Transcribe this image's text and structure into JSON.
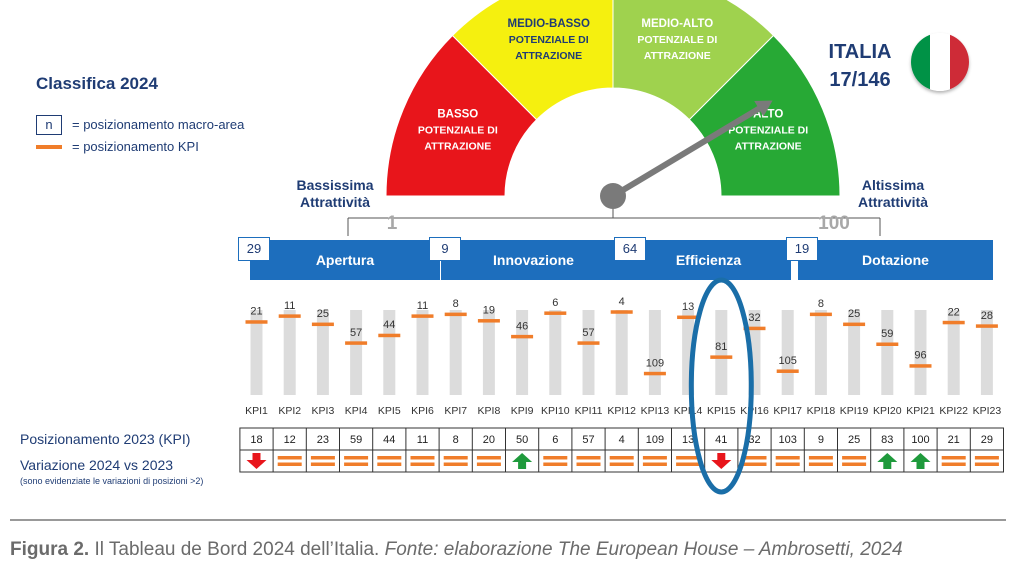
{
  "title": "Classifica 2024",
  "legend": {
    "box_symbol": "n",
    "box_text": "= posizionamento macro-area",
    "line_text": "= posizionamento KPI"
  },
  "country": {
    "name": "ITALIA",
    "rank": "17/146"
  },
  "flag_colors": [
    "#009246",
    "#ffffff",
    "#ce2b37"
  ],
  "gauge": {
    "min_label": "1",
    "max_label": "100",
    "left_label": [
      "Bassissima",
      "Attrattività"
    ],
    "right_label": [
      "Altissima",
      "Attrattività"
    ],
    "needle_value": 83,
    "segments": [
      {
        "lines": [
          "BASSO",
          "POTENZIALE DI",
          "ATTRAZIONE"
        ],
        "color": "#e8151b",
        "text_color": "#ffffff"
      },
      {
        "lines": [
          "MEDIO-BASSO",
          "POTENZIALE DI",
          "ATTRAZIONE"
        ],
        "color": "#f5f00f",
        "text_color": "#1f3c74"
      },
      {
        "lines": [
          "MEDIO-ALTO",
          "POTENZIALE DI",
          "ATTRAZIONE"
        ],
        "color": "#9fd24e",
        "text_color": "#ffffff"
      },
      {
        "lines": [
          "ALTO",
          "POTENZIALE DI",
          "ATTRAZIONE"
        ],
        "color": "#27a935",
        "text_color": "#ffffff"
      }
    ]
  },
  "areas": [
    {
      "name": "Apertura",
      "rank": "29"
    },
    {
      "name": "Innovazione",
      "rank": "9"
    },
    {
      "name": "Efficienza",
      "rank": "64"
    },
    {
      "name": "Dotazione",
      "rank": "19"
    }
  ],
  "chart_data": {
    "type": "bar",
    "ylim": [
      1,
      146
    ],
    "categories": [
      "KPI1",
      "KPI2",
      "KPI3",
      "KPI4",
      "KPI5",
      "KPI6",
      "KPI7",
      "KPI8",
      "KPI9",
      "KPI10",
      "KPI11",
      "KPI12",
      "KPI13",
      "KPI14",
      "KPI15",
      "KPI16",
      "KPI17",
      "KPI18",
      "KPI19",
      "KPI20",
      "KPI21",
      "KPI22",
      "KPI23"
    ],
    "values_2024": [
      21,
      11,
      25,
      57,
      44,
      11,
      8,
      19,
      46,
      6,
      57,
      4,
      109,
      13,
      81,
      32,
      105,
      8,
      25,
      59,
      96,
      22,
      28
    ],
    "values_2023": [
      18,
      12,
      23,
      59,
      44,
      11,
      8,
      20,
      50,
      6,
      57,
      4,
      109,
      13,
      41,
      32,
      103,
      9,
      25,
      83,
      100,
      21,
      29
    ],
    "variation": [
      "down",
      "same",
      "same",
      "same",
      "same",
      "same",
      "same",
      "same",
      "up",
      "same",
      "same",
      "same",
      "same",
      "same",
      "down",
      "same",
      "same",
      "same",
      "same",
      "up",
      "up",
      "same",
      "same"
    ],
    "highlight_index": 14
  },
  "rows": {
    "label_2023": "Posizionamento 2023 (KPI)",
    "label_var": "Variazione 2024 vs 2023",
    "note_var": "(sono evidenziate le variazioni di posizioni >2)"
  },
  "colors": {
    "navy": "#1f3c74",
    "blue_bar": "#1d6ebd",
    "orange": "#f07d2a",
    "grey_bar": "#dcdcdc",
    "arrow_up": "#1f9a3c",
    "arrow_down": "#e8151b",
    "highlight": "#1a6ea8"
  },
  "caption": {
    "bold": "Figura 2.",
    "normal": " Il Tableau de Bord 2024 dell’Italia. ",
    "italic": "Fonte: elaborazione The European House – Ambrosetti, 2024"
  }
}
